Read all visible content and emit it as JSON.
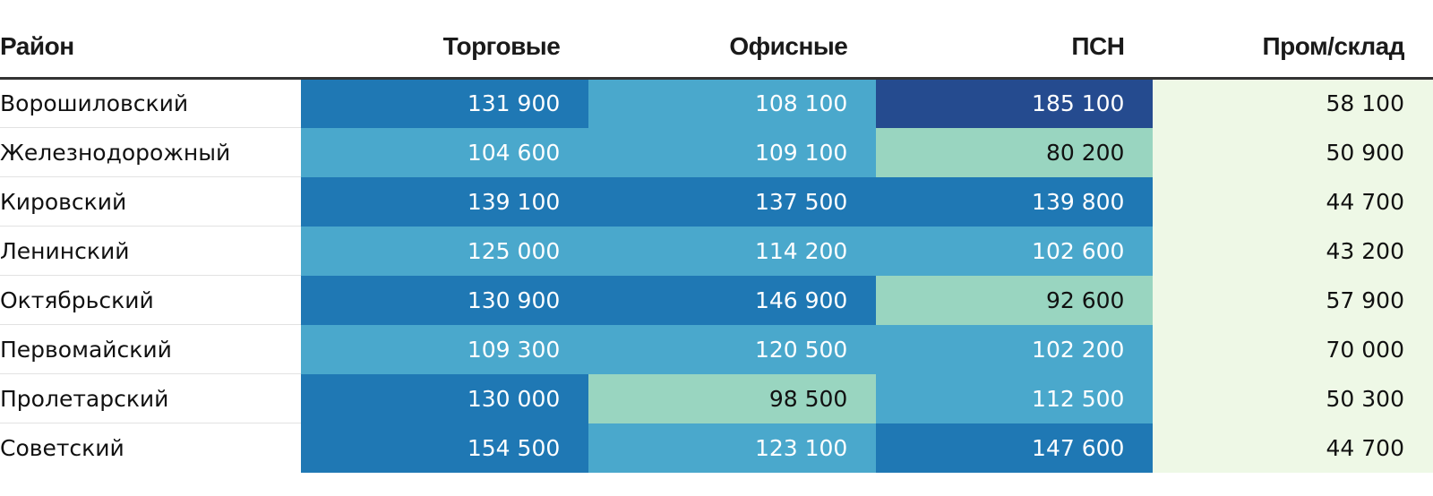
{
  "chart_data": {
    "type": "table",
    "columns": [
      "Район",
      "Торговые",
      "Офисные",
      "ПСН",
      "Пром/склад"
    ],
    "rows": [
      {
        "district": "Ворошиловский",
        "values": [
          "131 900",
          "108 100",
          "185 100",
          "58 100"
        ],
        "colors": [
          "#1f78b4",
          "#4aa8cc",
          "#254b8f",
          "#eef8e6"
        ],
        "text": [
          "#ffffff",
          "#ffffff",
          "#ffffff",
          "#111111"
        ]
      },
      {
        "district": "Железнодорожный",
        "values": [
          "104 600",
          "109 100",
          "80 200",
          "50 900"
        ],
        "colors": [
          "#4aa8cc",
          "#4aa8cc",
          "#99d5c0",
          "#eef8e6"
        ],
        "text": [
          "#ffffff",
          "#ffffff",
          "#111111",
          "#111111"
        ]
      },
      {
        "district": "Кировский",
        "values": [
          "139 100",
          "137 500",
          "139 800",
          "44 700"
        ],
        "colors": [
          "#1f78b4",
          "#1f78b4",
          "#1f78b4",
          "#eef8e6"
        ],
        "text": [
          "#ffffff",
          "#ffffff",
          "#ffffff",
          "#111111"
        ]
      },
      {
        "district": "Ленинский",
        "values": [
          "125 000",
          "114 200",
          "102 600",
          "43 200"
        ],
        "colors": [
          "#4aa8cc",
          "#4aa8cc",
          "#4aa8cc",
          "#eef8e6"
        ],
        "text": [
          "#ffffff",
          "#ffffff",
          "#ffffff",
          "#111111"
        ]
      },
      {
        "district": "Октябрьский",
        "values": [
          "130 900",
          "146 900",
          "92 600",
          "57 900"
        ],
        "colors": [
          "#1f78b4",
          "#1f78b4",
          "#99d5c0",
          "#eef8e6"
        ],
        "text": [
          "#ffffff",
          "#ffffff",
          "#111111",
          "#111111"
        ]
      },
      {
        "district": "Первомайский",
        "values": [
          "109 300",
          "120 500",
          "102 200",
          "70 000"
        ],
        "colors": [
          "#4aa8cc",
          "#4aa8cc",
          "#4aa8cc",
          "#eef8e6"
        ],
        "text": [
          "#ffffff",
          "#ffffff",
          "#ffffff",
          "#111111"
        ]
      },
      {
        "district": "Пролетарский",
        "values": [
          "130 000",
          "98 500",
          "112 500",
          "50 300"
        ],
        "colors": [
          "#1f78b4",
          "#99d5c0",
          "#4aa8cc",
          "#eef8e6"
        ],
        "text": [
          "#ffffff",
          "#111111",
          "#ffffff",
          "#111111"
        ]
      },
      {
        "district": "Советский",
        "values": [
          "154 500",
          "123 100",
          "147 600",
          "44 700"
        ],
        "colors": [
          "#1f78b4",
          "#4aa8cc",
          "#1f78b4",
          "#eef8e6"
        ],
        "text": [
          "#ffffff",
          "#ffffff",
          "#ffffff",
          "#111111"
        ]
      }
    ]
  }
}
